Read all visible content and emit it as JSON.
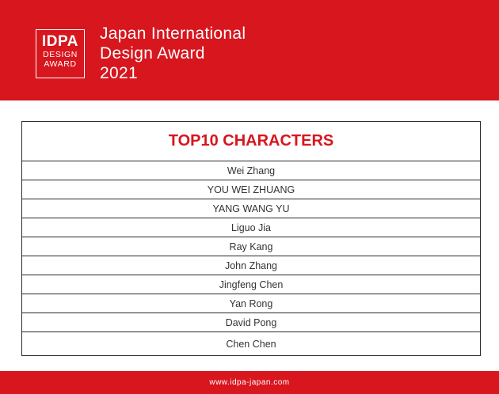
{
  "header": {
    "logo": {
      "main": "IDPA",
      "line1": "DESIGN",
      "line2": "AWARD"
    },
    "title_lines": [
      "Japan International",
      "Design Award",
      "2021"
    ]
  },
  "table": {
    "title": "TOP10 CHARACTERS",
    "rows": [
      "Wei Zhang",
      "YOU WEI ZHUANG",
      "YANG WANG YU",
      "Liguo Jia",
      "Ray Kang",
      "John Zhang",
      "Jingfeng Chen",
      "Yan Rong",
      "David Pong",
      "Chen Chen"
    ]
  },
  "footer": {
    "url": "www.idpa-japan.com"
  },
  "colors": {
    "brand_red": "#d7161e",
    "text": "#333333"
  }
}
